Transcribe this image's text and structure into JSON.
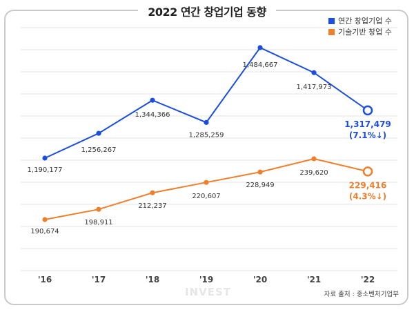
{
  "title": "2022 연간 창업기업 동향",
  "source": "자료 출처 : 중소벤처기업부",
  "watermark": "INVEST",
  "colors": {
    "blue": "#1a4de0",
    "orange": "#f07f2c",
    "grid": "#e4e4e4"
  },
  "chart_data": {
    "type": "line",
    "categories": [
      "'16",
      "'17",
      "'18",
      "'19",
      "'20",
      "'21",
      "'22"
    ],
    "series": [
      {
        "name": "연간 창업기업 수",
        "color": "#1a4de0",
        "values": [
          1190177,
          1256267,
          1344366,
          1285259,
          1484667,
          1417973,
          1317479
        ],
        "labels": [
          "1,190,177",
          "1,256,267",
          "1,344,366",
          "1,285,259",
          "1,484,667",
          "1,417,973",
          "1,317,479"
        ],
        "last_change": "(7.1%↓)"
      },
      {
        "name": "기술기반 창업 수",
        "color": "#f07f2c",
        "values": [
          190674,
          198911,
          212237,
          220607,
          228949,
          239620,
          229416
        ],
        "labels": [
          "190,674",
          "198,911",
          "212,237",
          "220,607",
          "228,949",
          "239,620",
          "229,416"
        ],
        "last_change": "(4.3%↓)"
      }
    ],
    "legend_position": "top-right",
    "grid": true
  }
}
